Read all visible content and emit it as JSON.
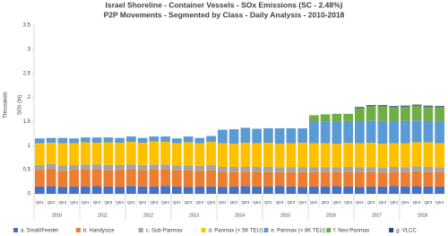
{
  "chart_data": {
    "type": "bar",
    "stacked": true,
    "title": "Israel Shoreline - Container Vessels - SOx Emissions (SC - 2.48%)",
    "subtitle": "P2P Movements - Segmented by Class - Daily Analysis - 2010-2018",
    "y_label": "SOx (tn)",
    "y_unit_label": "Thousands",
    "categories": [
      "Qtr1",
      "Qtr2",
      "Qtr3",
      "Qtr4",
      "Qtr1",
      "Qtr2",
      "Qtr3",
      "Qtr4",
      "Qtr1",
      "Qtr2",
      "Qtr3",
      "Qtr4",
      "Qtr1",
      "Qtr2",
      "Qtr3",
      "Qtr4",
      "Qtr1",
      "Qtr2",
      "Qtr3",
      "Qtr4",
      "Qtr1",
      "Qtr2",
      "Qtr3",
      "Qtr4",
      "Qtr1",
      "Qtr2",
      "Qtr3",
      "Qtr4",
      "Qtr1",
      "Qtr2",
      "Qtr3",
      "Qtr4",
      "Qtr1",
      "Qtr2",
      "Qtr3",
      "Qtr4"
    ],
    "years": [
      "2010",
      "2011",
      "2012",
      "2013",
      "2014",
      "2015",
      "2016",
      "2017",
      "2018"
    ],
    "ylim": [
      0,
      3.5
    ],
    "yticks": [
      0,
      0.5,
      1,
      1.5,
      2,
      2.5,
      3,
      3.5
    ],
    "grid": false,
    "series": [
      {
        "name": "a. Small/Feeder",
        "color": "#4472c4",
        "values": [
          0.15,
          0.16,
          0.14,
          0.15,
          0.15,
          0.16,
          0.15,
          0.14,
          0.16,
          0.15,
          0.15,
          0.16,
          0.15,
          0.14,
          0.15,
          0.15,
          0.14,
          0.15,
          0.16,
          0.15,
          0.15,
          0.16,
          0.15,
          0.14,
          0.15,
          0.15,
          0.16,
          0.15,
          0.14,
          0.15,
          0.15,
          0.16,
          0.15,
          0.16,
          0.15,
          0.15
        ]
      },
      {
        "name": "b. Handysize",
        "color": "#ed7d31",
        "values": [
          0.35,
          0.36,
          0.34,
          0.35,
          0.36,
          0.35,
          0.34,
          0.36,
          0.35,
          0.34,
          0.36,
          0.35,
          0.34,
          0.35,
          0.33,
          0.34,
          0.32,
          0.31,
          0.3,
          0.31,
          0.3,
          0.29,
          0.3,
          0.31,
          0.3,
          0.3,
          0.29,
          0.3,
          0.31,
          0.3,
          0.29,
          0.3,
          0.3,
          0.31,
          0.3,
          0.3
        ]
      },
      {
        "name": "c. Sub-Panmax",
        "color": "#a5a5a5",
        "values": [
          0.1,
          0.1,
          0.11,
          0.1,
          0.1,
          0.1,
          0.11,
          0.1,
          0.1,
          0.11,
          0.1,
          0.1,
          0.1,
          0.1,
          0.1,
          0.11,
          0.1,
          0.1,
          0.1,
          0.1,
          0.11,
          0.1,
          0.1,
          0.1,
          0.1,
          0.1,
          0.1,
          0.11,
          0.1,
          0.1,
          0.1,
          0.1,
          0.1,
          0.1,
          0.11,
          0.1
        ]
      },
      {
        "name": "d. Panmax (< 5K TEU)",
        "color": "#ffc000",
        "values": [
          0.45,
          0.44,
          0.46,
          0.45,
          0.46,
          0.45,
          0.47,
          0.46,
          0.47,
          0.46,
          0.48,
          0.47,
          0.46,
          0.48,
          0.47,
          0.48,
          0.49,
          0.48,
          0.5,
          0.49,
          0.5,
          0.49,
          0.5,
          0.51,
          0.5,
          0.5,
          0.49,
          0.5,
          0.5,
          0.51,
          0.5,
          0.49,
          0.5,
          0.5,
          0.51,
          0.5
        ]
      },
      {
        "name": "e. Panmax (< 8K TEU)",
        "color": "#5b9bd5",
        "values": [
          0.1,
          0.1,
          0.11,
          0.1,
          0.1,
          0.11,
          0.1,
          0.1,
          0.11,
          0.1,
          0.1,
          0.11,
          0.1,
          0.12,
          0.11,
          0.12,
          0.28,
          0.3,
          0.31,
          0.3,
          0.3,
          0.32,
          0.31,
          0.3,
          0.44,
          0.45,
          0.46,
          0.45,
          0.45,
          0.46,
          0.47,
          0.45,
          0.46,
          0.45,
          0.44,
          0.45
        ]
      },
      {
        "name": "f. Neo-Panmax",
        "color": "#70ad47",
        "values": [
          0,
          0,
          0,
          0,
          0,
          0,
          0,
          0,
          0,
          0,
          0,
          0,
          0,
          0,
          0,
          0,
          0,
          0,
          0,
          0,
          0,
          0,
          0,
          0,
          0.14,
          0.15,
          0.16,
          0.15,
          0.28,
          0.3,
          0.31,
          0.3,
          0.3,
          0.31,
          0.3,
          0.3
        ]
      },
      {
        "name": "g. VLCC",
        "color": "#264478",
        "values": [
          0,
          0,
          0,
          0,
          0,
          0,
          0,
          0,
          0,
          0,
          0,
          0,
          0,
          0,
          0,
          0,
          0,
          0,
          0,
          0,
          0,
          0,
          0,
          0,
          0,
          0,
          0,
          0,
          0.02,
          0.02,
          0.02,
          0.02,
          0.02,
          0.02,
          0.02,
          0.02
        ]
      }
    ]
  }
}
